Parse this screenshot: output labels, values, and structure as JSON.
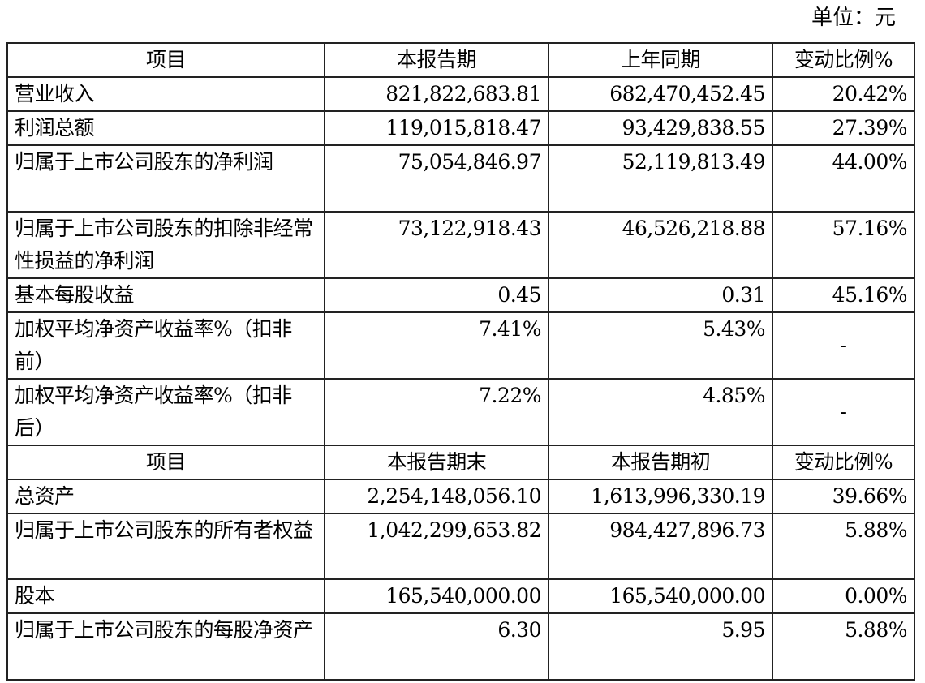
{
  "unit_label": "单位：元",
  "section1": {
    "headers": [
      "项目",
      "本报告期",
      "上年同期",
      "变动比例%"
    ],
    "rows": [
      {
        "item": "营业收入",
        "current": "821,822,683.81",
        "previous": "682,470,452.45",
        "change": "20.42%"
      },
      {
        "item": "利润总额",
        "current": "119,015,818.47",
        "previous": "93,429,838.55",
        "change": "27.39%"
      },
      {
        "item": "归属于上市公司股东的净利润",
        "current": "75,054,846.97",
        "previous": "52,119,813.49",
        "change": "44.00%"
      },
      {
        "item": "归属于上市公司股东的扣除非经常性损益的净利润",
        "current": "73,122,918.43",
        "previous": "46,526,218.88",
        "change": "57.16%"
      },
      {
        "item": "基本每股收益",
        "current": "0.45",
        "previous": "0.31",
        "change": "45.16%"
      },
      {
        "item": "加权平均净资产收益率%（扣非前）",
        "current": "7.41%",
        "previous": "5.43%",
        "change": "-"
      },
      {
        "item": "加权平均净资产收益率%（扣非后）",
        "current": "7.22%",
        "previous": "4.85%",
        "change": "-"
      }
    ]
  },
  "section2": {
    "headers": [
      "项目",
      "本报告期末",
      "本报告期初",
      "变动比例%"
    ],
    "rows": [
      {
        "item": "总资产",
        "current": "2,254,148,056.10",
        "previous": "1,613,996,330.19",
        "change": "39.66%"
      },
      {
        "item": "归属于上市公司股东的所有者权益",
        "current": "1,042,299,653.82",
        "previous": "984,427,896.73",
        "change": "5.88%"
      },
      {
        "item": "股本",
        "current": "165,540,000.00",
        "previous": "165,540,000.00",
        "change": "0.00%"
      },
      {
        "item": "归属于上市公司股东的每股净资产",
        "current": "6.30",
        "previous": "5.95",
        "change": "5.88%"
      }
    ]
  }
}
